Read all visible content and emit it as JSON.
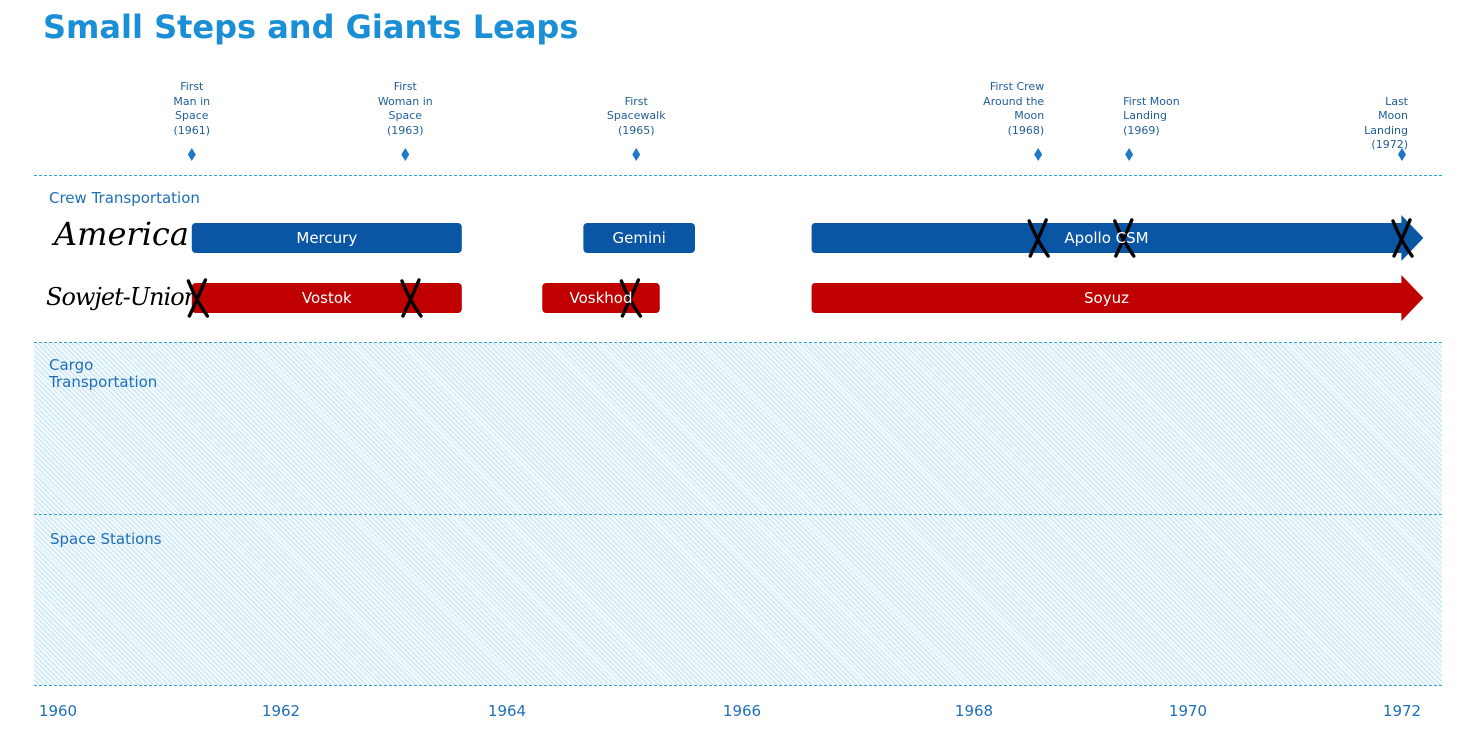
{
  "chart_data": {
    "type": "timeline",
    "title": "Small Steps and Giants Leaps",
    "xlim": [
      1960,
      1972.2
    ],
    "x_ticks": [
      "1960",
      "1962",
      "1964",
      "1966",
      "1968",
      "1970",
      "1972"
    ],
    "grid": false,
    "milestones": [
      {
        "label": "First\nMan in\nSpace\n(1961)",
        "x": 1961.2,
        "align": "center"
      },
      {
        "label": "First\nWoman in\nSpace\n(1963)",
        "x": 1963.1,
        "align": "center"
      },
      {
        "label": "First\nSpacewalk\n(1965)",
        "x": 1965.1,
        "align": "center"
      },
      {
        "label": "First Crew\nAround the\nMoon\n(1968)",
        "x": 1968.6,
        "align": "right"
      },
      {
        "label": "First Moon\nLanding\n(1969)",
        "x": 1969.45,
        "align": "left"
      },
      {
        "label": "Last Moon\nLanding\n(1972)",
        "x": 1972.0,
        "align": "right"
      }
    ],
    "lanes": [
      {
        "label": "Crew Transportation"
      },
      {
        "label": "Cargo\nTransportation"
      },
      {
        "label": "Space Stations"
      }
    ],
    "rows": [
      {
        "label": "America",
        "color": "#0b56a4"
      },
      {
        "label": "Sowjet-Union",
        "color": "#c00000"
      }
    ],
    "series": [
      {
        "name": "Mercury",
        "row": 0,
        "start": 1961.2,
        "end": 1963.6,
        "arrow": false
      },
      {
        "name": "Gemini",
        "row": 0,
        "start": 1964.65,
        "end": 1965.6,
        "arrow": false
      },
      {
        "name": "Apollo CSM",
        "row": 0,
        "start": 1966.6,
        "end": 1972.2,
        "arrow": true
      },
      {
        "name": "Vostok",
        "row": 1,
        "start": 1961.2,
        "end": 1963.6,
        "arrow": false
      },
      {
        "name": "Voskhod",
        "row": 1,
        "start": 1964.3,
        "end": 1965.3,
        "arrow": false
      },
      {
        "name": "Soyuz",
        "row": 1,
        "start": 1966.6,
        "end": 1972.2,
        "arrow": true
      }
    ],
    "annotations": [
      {
        "mark": "X",
        "row": 0,
        "x": 1968.6
      },
      {
        "mark": "X",
        "row": 0,
        "x": 1969.4
      },
      {
        "mark": "X",
        "row": 0,
        "x": 1972.0
      },
      {
        "mark": "X",
        "row": 1,
        "x": 1961.25
      },
      {
        "mark": "X",
        "row": 1,
        "x": 1963.15
      },
      {
        "mark": "X",
        "row": 1,
        "x": 1965.05
      }
    ]
  }
}
